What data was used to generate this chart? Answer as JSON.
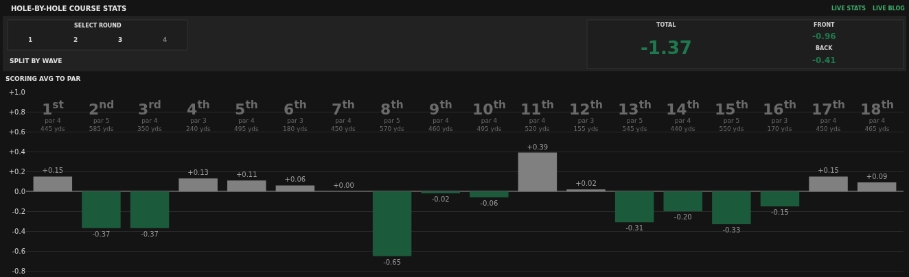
{
  "chart_data": {
    "type": "bar",
    "title": "SCORING AVG TO PAR",
    "categories": [
      "1$^{st}$\npar 4\n445 yds",
      "2$^{nd}$\npar 5\n585 yds",
      "3$^{rd}$\npar 4\n350 yds",
      "4$^{th}$\npar 3\n240 yds",
      "5$^{th}$\npar 4\n495 yds",
      "6$^{th}$\npar 3\n180 yds",
      "7$^{th}$\npar 4\n450 yds",
      "8$^{th}$\npar 5\n570 yds",
      "9$^{th}$\npar 4\n460 yds",
      "10$^{th}$\npar 4\n495 yds",
      "11$^{th}$\npar 4\n520 yds",
      "12$^{th}$\npar 3\n155 yds",
      "13$^{th}$\npar 5\n545 yds",
      "14$^{th}$\npar 4\n440 yds",
      "15$^{th}$\npar 5\n550 yds",
      "16$^{th}$\npar 3\n170 yds",
      "17$^{th}$\npar 4\n450 yds",
      "18$^{th}$\npar 4\n465 yds"
    ],
    "values": [
      0.15,
      -0.37,
      -0.37,
      0.13,
      0.11,
      0.06,
      0.0,
      -0.65,
      -0.02,
      -0.06,
      0.39,
      0.02,
      -0.31,
      -0.2,
      -0.33,
      -0.15,
      0.15,
      0.09
    ],
    "value_labels": [
      "+0.15",
      "-0.37",
      "-0.37",
      "+0.13",
      "+0.11",
      "+0.06",
      "+0.00",
      "-0.65",
      "-0.02",
      "-0.06",
      "+0.39",
      "+0.02",
      "-0.31",
      "-0.20",
      "-0.33",
      "-0.15",
      "+0.15",
      "+0.09"
    ],
    "colors": [
      "#808080",
      "#1c5a3c",
      "#1c5a3c",
      "#808080",
      "#808080",
      "#808080",
      "#808080",
      "#1c5a3c",
      "#1c5a3c",
      "#1c5a3c",
      "#808080",
      "#808080",
      "#1c5a3c",
      "#1c5a3c",
      "#1c5a3c",
      "#1c5a3c",
      "#808080",
      "#808080"
    ],
    "ylim": [
      -0.86,
      1.0
    ],
    "yticks": [
      {
        "value": 1.0,
        "label": "+1.0"
      },
      {
        "value": 0.8,
        "label": "+0.8"
      },
      {
        "value": 0.6,
        "label": "+0.6"
      },
      {
        "value": 0.4,
        "label": "+0.4"
      },
      {
        "value": 0.2,
        "label": "+0.2"
      },
      {
        "value": 0,
        "label": "0.0"
      },
      {
        "value": -0.2,
        "label": "-0.2"
      },
      {
        "value": -0.4,
        "label": "-0.4"
      },
      {
        "value": -0.6,
        "label": "-0.6"
      },
      {
        "value": -0.8,
        "label": "-0.8"
      }
    ],
    "grid": "y",
    "annotations": [
      "HOLE-BY-HOLE COURSE STATS",
      "SELECT ROUND",
      "1",
      "2",
      "3",
      "4",
      "SPLIT BY WAVE",
      "TOTAL",
      "-1.37",
      "FRONT",
      "-0.96",
      "BACK",
      "-0.41",
      "LIVE STATS",
      "LIVE BLOG"
    ]
  }
}
